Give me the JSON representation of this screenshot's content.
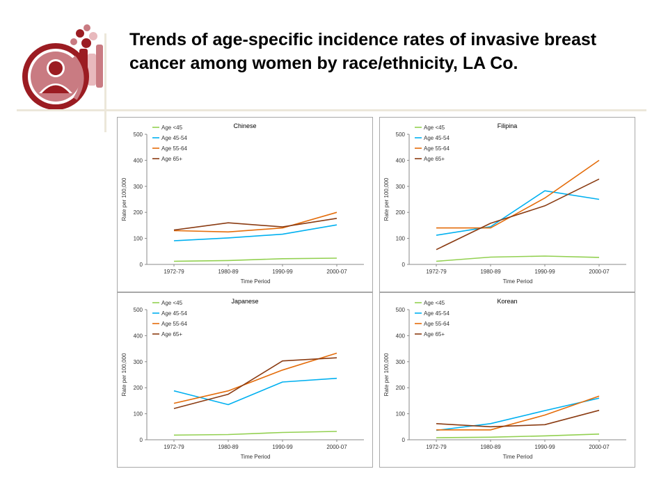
{
  "slide": {
    "title": "Trends of age-specific incidence rates of invasive breast cancer among women by race/ethnicity, LA Co."
  },
  "logo": {
    "icon": "family-circle-logo-icon",
    "colors": [
      "#9b1c22",
      "#c97b82",
      "#e8b9bd"
    ]
  },
  "chart_data": [
    {
      "type": "line",
      "title": "Chinese",
      "categories": [
        "1972-79",
        "1980-89",
        "1990-99",
        "2000-07"
      ],
      "xlabel": "Time Period",
      "ylabel": "Rate per 100,000",
      "ylim": [
        0,
        500
      ],
      "yticks": [
        "0",
        "100",
        "200",
        "300",
        "400",
        "500"
      ],
      "grid": false,
      "legend": "top-left",
      "series": [
        {
          "name": "Age <45",
          "color": "#92d050",
          "values": [
            12,
            15,
            22,
            24
          ]
        },
        {
          "name": "Age 45-54",
          "color": "#00b0f0",
          "values": [
            91,
            102,
            116,
            152
          ]
        },
        {
          "name": "Age 55-64",
          "color": "#e46c0a",
          "values": [
            130,
            125,
            140,
            200
          ]
        },
        {
          "name": "Age 65+",
          "color": "#8a3b12",
          "values": [
            132,
            160,
            144,
            177
          ]
        }
      ]
    },
    {
      "type": "line",
      "title": "Filipina",
      "categories": [
        "1972-79",
        "1980-89",
        "1990-99",
        "2000-07"
      ],
      "xlabel": "Time Period",
      "ylabel": "Rate per 100,000",
      "ylim": [
        0,
        500
      ],
      "yticks": [
        "0",
        "100",
        "200",
        "300",
        "400",
        "500"
      ],
      "grid": false,
      "legend": "top-left",
      "series": [
        {
          "name": "Age <45",
          "color": "#92d050",
          "values": [
            12,
            28,
            32,
            27
          ]
        },
        {
          "name": "Age 45-54",
          "color": "#00b0f0",
          "values": [
            112,
            145,
            283,
            250
          ]
        },
        {
          "name": "Age 55-64",
          "color": "#e46c0a",
          "values": [
            140,
            140,
            255,
            400
          ]
        },
        {
          "name": "Age 65+",
          "color": "#8a3b12",
          "values": [
            57,
            158,
            225,
            328
          ]
        }
      ]
    },
    {
      "type": "line",
      "title": "Japanese",
      "categories": [
        "1972-79",
        "1980-89",
        "1990-99",
        "2000-07"
      ],
      "xlabel": "Time Period",
      "ylabel": "Rate per 100,000",
      "ylim": [
        0,
        500
      ],
      "yticks": [
        "0",
        "100",
        "200",
        "300",
        "400",
        "500"
      ],
      "grid": false,
      "legend": "top-left",
      "series": [
        {
          "name": "Age <45",
          "color": "#92d050",
          "values": [
            18,
            20,
            28,
            32
          ]
        },
        {
          "name": "Age 45-54",
          "color": "#00b0f0",
          "values": [
            188,
            135,
            222,
            236
          ]
        },
        {
          "name": "Age 55-64",
          "color": "#e46c0a",
          "values": [
            140,
            188,
            268,
            333
          ]
        },
        {
          "name": "Age 65+",
          "color": "#8a3b12",
          "values": [
            120,
            175,
            303,
            315
          ]
        }
      ]
    },
    {
      "type": "line",
      "title": "Korean",
      "categories": [
        "1972-79",
        "1980-89",
        "1990-99",
        "2000-07"
      ],
      "xlabel": "Time Period",
      "ylabel": "Rate per 100,000",
      "ylim": [
        0,
        500
      ],
      "yticks": [
        "0",
        "100",
        "200",
        "300",
        "400",
        "500"
      ],
      "grid": false,
      "legend": "top-left",
      "series": [
        {
          "name": "Age <45",
          "color": "#92d050",
          "values": [
            8,
            10,
            15,
            22
          ]
        },
        {
          "name": "Age 45-54",
          "color": "#00b0f0",
          "values": [
            36,
            62,
            112,
            160
          ]
        },
        {
          "name": "Age 55-64",
          "color": "#e46c0a",
          "values": [
            38,
            38,
            95,
            168
          ]
        },
        {
          "name": "Age 65+",
          "color": "#8a3b12",
          "values": [
            62,
            50,
            58,
            113
          ]
        }
      ]
    }
  ]
}
